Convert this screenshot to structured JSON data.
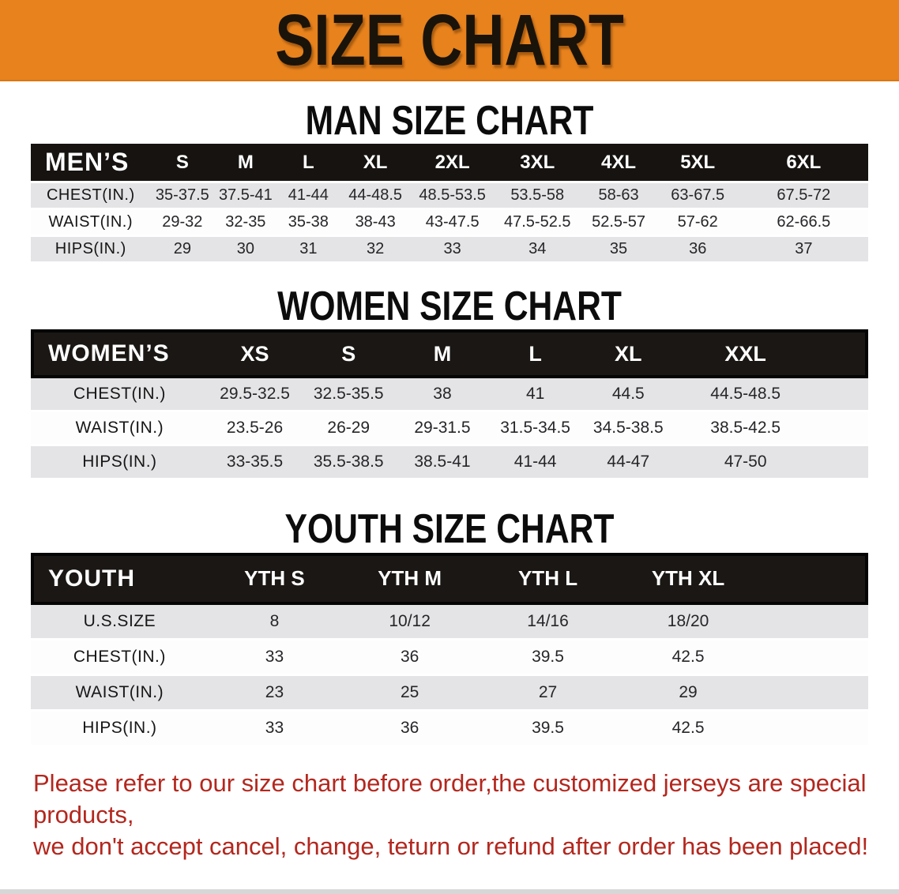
{
  "banner": {
    "title": "SIZE CHART",
    "background_color": "#e7821d",
    "title_color": "#1a130a"
  },
  "sections": [
    {
      "id": "men",
      "title": "MAN SIZE CHART",
      "corner_label": "MEN’S",
      "columns": [
        "S",
        "M",
        "L",
        "XL",
        "2XL",
        "3XL",
        "4XL",
        "5XL",
        "6XL"
      ],
      "rows": [
        {
          "label": "CHEST(IN.)",
          "values": [
            "35-37.5",
            "37.5-41",
            "41-44",
            "44-48.5",
            "48.5-53.5",
            "53.5-58",
            "58-63",
            "63-67.5",
            "67.5-72"
          ]
        },
        {
          "label": "WAIST(IN.)",
          "values": [
            "29-32",
            "32-35",
            "35-38",
            "38-43",
            "43-47.5",
            "47.5-52.5",
            "52.5-57",
            "57-62",
            "62-66.5"
          ]
        },
        {
          "label": "HIPS(IN.)",
          "values": [
            "29",
            "30",
            "31",
            "32",
            "33",
            "34",
            "35",
            "36",
            "37"
          ]
        }
      ]
    },
    {
      "id": "women",
      "title": "WOMEN SIZE CHART",
      "corner_label": "WOMEN’S",
      "columns": [
        "XS",
        "S",
        "M",
        "L",
        "XL",
        "XXL"
      ],
      "rows": [
        {
          "label": "CHEST(IN.)",
          "values": [
            "29.5-32.5",
            "32.5-35.5",
            "38",
            "41",
            "44.5",
            "44.5-48.5"
          ]
        },
        {
          "label": "WAIST(IN.)",
          "values": [
            "23.5-26",
            "26-29",
            "29-31.5",
            "31.5-34.5",
            "34.5-38.5",
            "38.5-42.5"
          ]
        },
        {
          "label": "HIPS(IN.)",
          "values": [
            "33-35.5",
            "35.5-38.5",
            "38.5-41",
            "41-44",
            "44-47",
            "47-50"
          ]
        }
      ]
    },
    {
      "id": "youth",
      "title": "YOUTH SIZE CHART",
      "corner_label": "YOUTH",
      "columns": [
        "YTH S",
        "YTH M",
        "YTH L",
        "YTH XL"
      ],
      "rows": [
        {
          "label": "U.S.SIZE",
          "values": [
            "8",
            "10/12",
            "14/16",
            "18/20"
          ]
        },
        {
          "label": "CHEST(IN.)",
          "values": [
            "33",
            "36",
            "39.5",
            "42.5"
          ]
        },
        {
          "label": "WAIST(IN.)",
          "values": [
            "23",
            "25",
            "27",
            "29"
          ]
        },
        {
          "label": "HIPS(IN.)",
          "values": [
            "33",
            "36",
            "39.5",
            "42.5"
          ]
        }
      ]
    }
  ],
  "footer": {
    "lines": [
      "Please refer to our size chart before order,the customized jerseys are special products,",
      "we don't accept cancel, change, teturn or refund after order has been placed!"
    ],
    "text_color": "#b3271e"
  }
}
